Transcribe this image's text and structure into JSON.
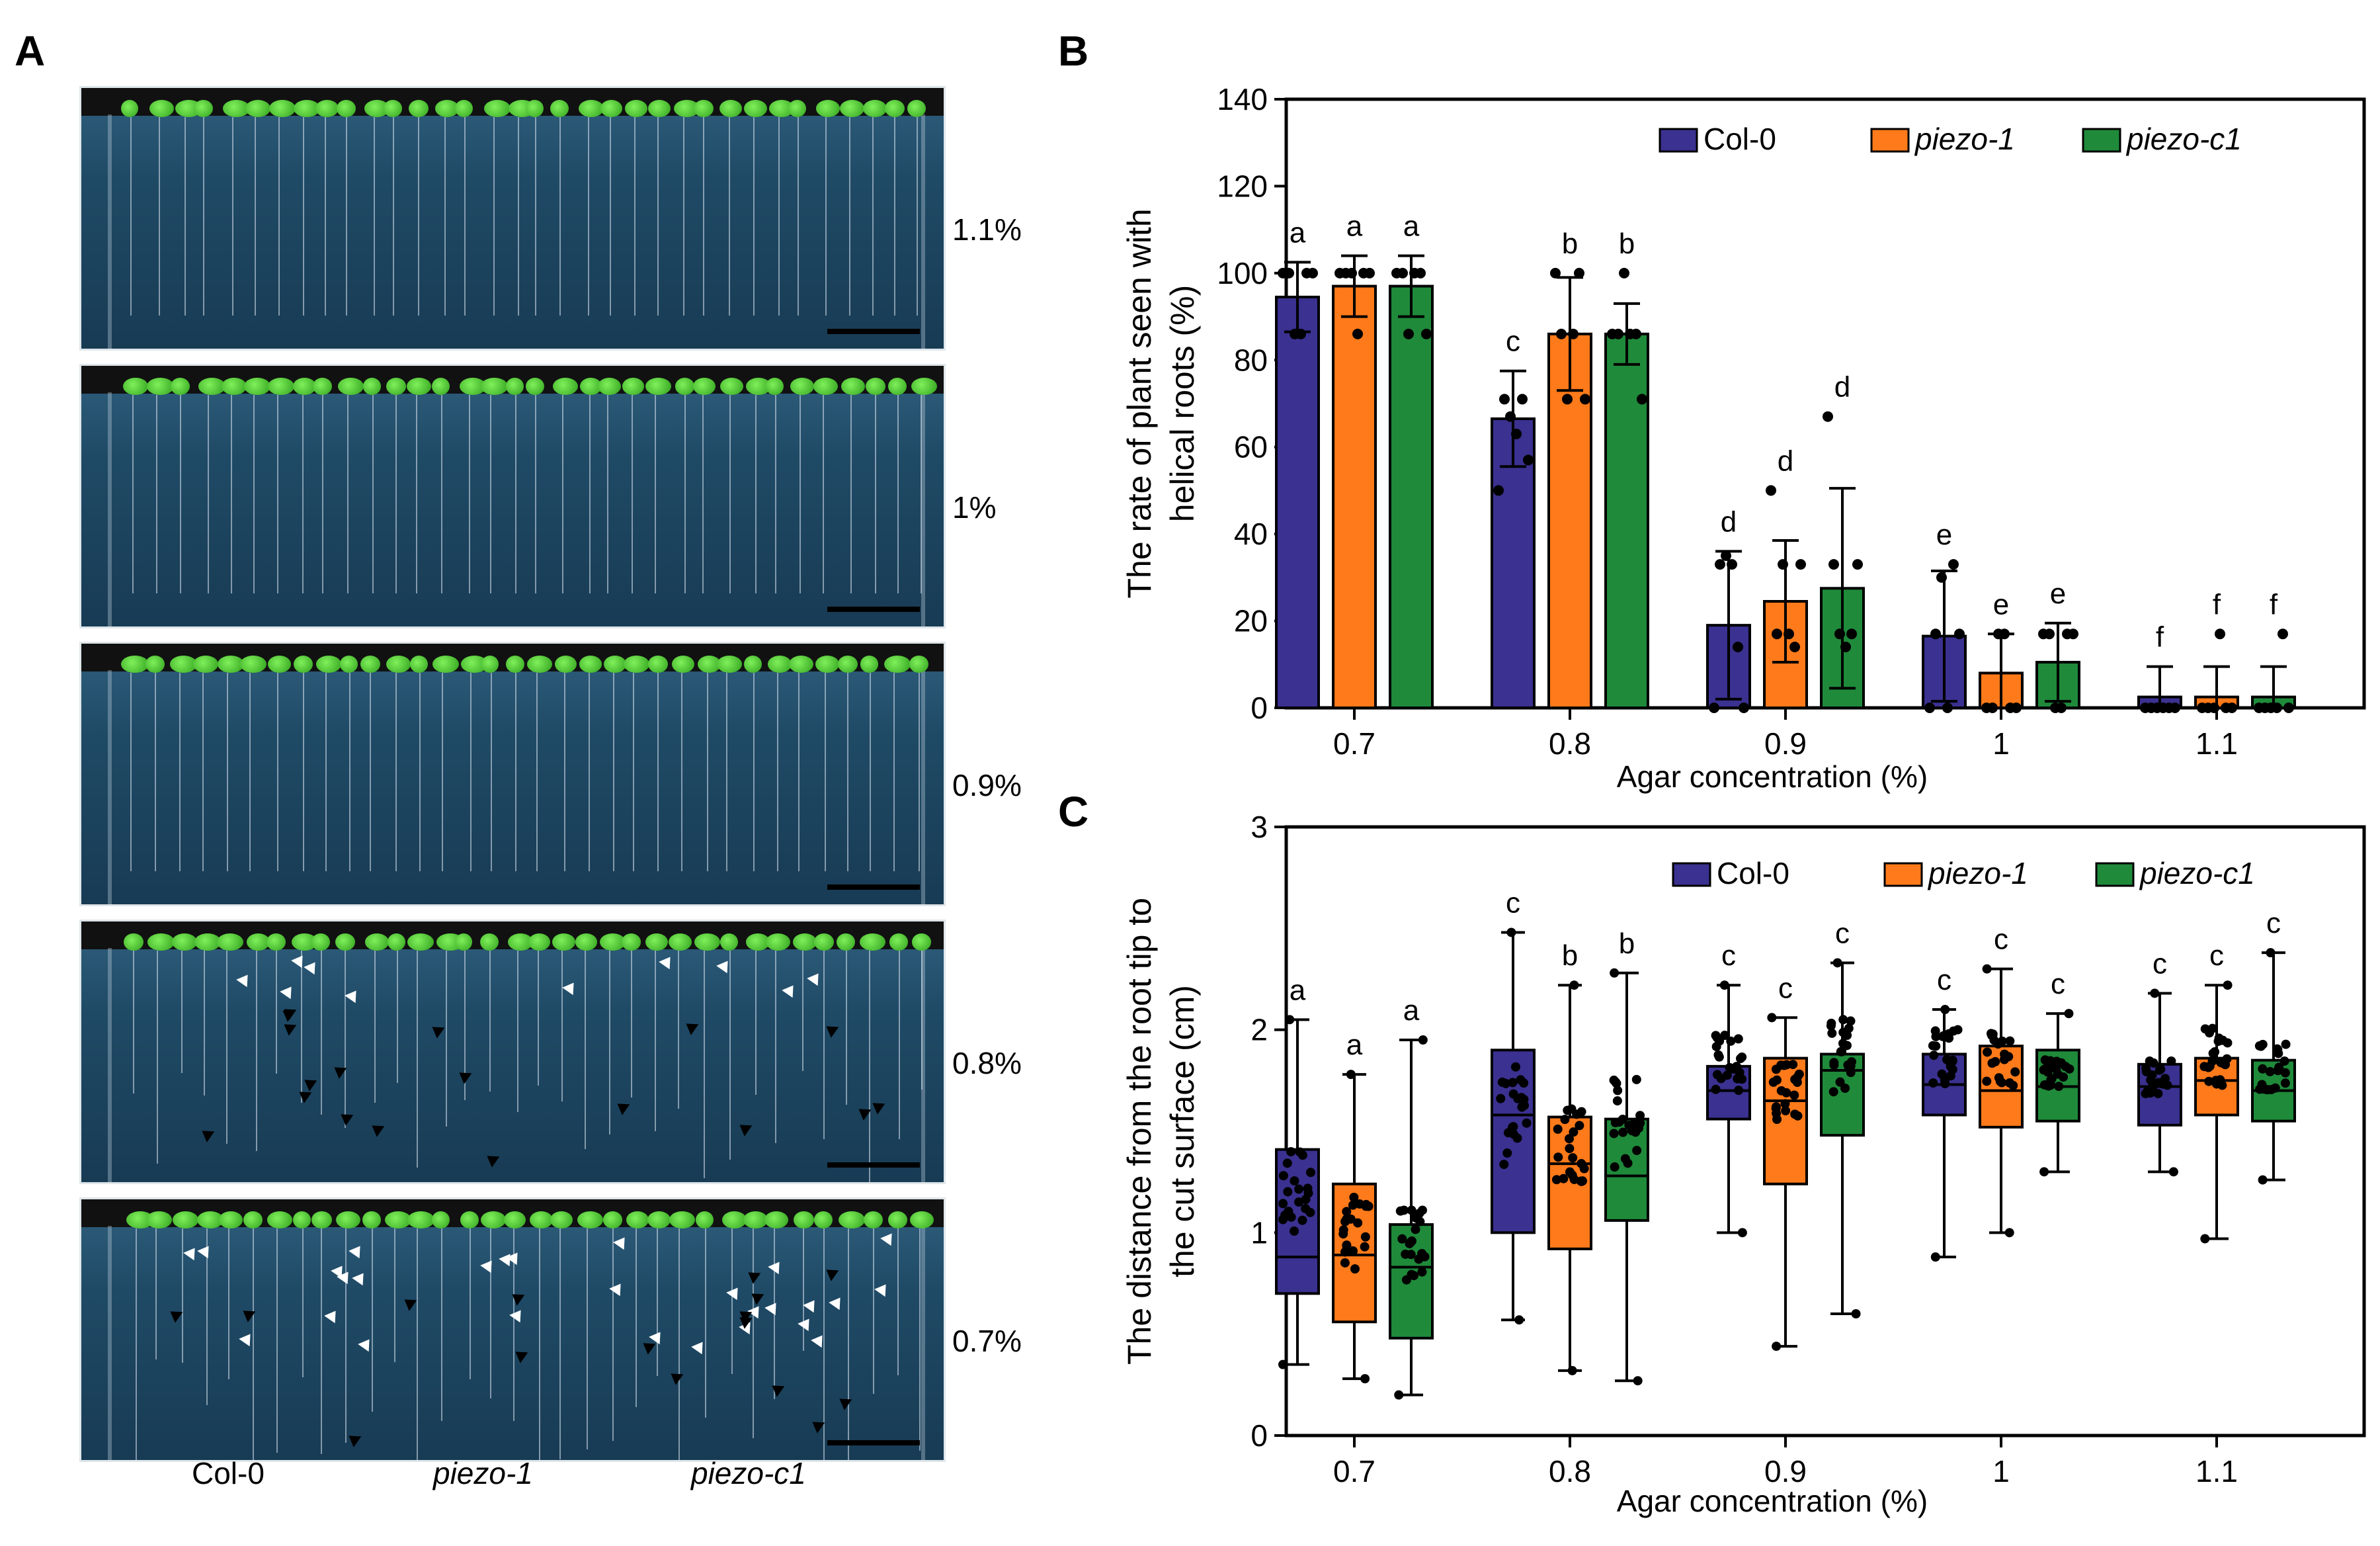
{
  "panels": {
    "a": "A",
    "b": "B",
    "c": "C"
  },
  "photo": {
    "concentration_labels": [
      "1.1%",
      "1%",
      "0.9%",
      "0.8%",
      "0.7%"
    ],
    "genotype_labels": [
      {
        "text": "Col-0",
        "italic": false
      },
      {
        "text": "piezo-1",
        "italic": true
      },
      {
        "text": "piezo-c1",
        "italic": true
      }
    ]
  },
  "colors": {
    "col0": "#3a3190",
    "piezo1": "#ff7a1a",
    "piezoc1": "#1f8a3a"
  },
  "chart_data": [
    {
      "id": "B",
      "type": "bar",
      "ylabel_line1": "The rate of plant seen with",
      "ylabel_line2": "helical roots (%)",
      "xlabel": "Agar concentration (%)",
      "categories": [
        "0.7",
        "0.8",
        "0.9",
        "1",
        "1.1"
      ],
      "ylim": [
        0,
        140
      ],
      "yticks": [
        0,
        20,
        40,
        60,
        80,
        100,
        120,
        140
      ],
      "legend_position": "top",
      "series": [
        {
          "name": "Col-0",
          "italic": false,
          "color": "#3a3190",
          "values": [
            94.5,
            66.5,
            19,
            16.5,
            2.5
          ],
          "sd": [
            8,
            11,
            17,
            15,
            7
          ],
          "letters": [
            "a",
            "c",
            "d",
            "e",
            "f"
          ],
          "points": [
            [
              100,
              100,
              86,
              86,
              100,
              100
            ],
            [
              50,
              71,
              67,
              63,
              71,
              57
            ],
            [
              0,
              33,
              35,
              33,
              14,
              0
            ],
            [
              0,
              17,
              30,
              0,
              33,
              17
            ],
            [
              0,
              0,
              0,
              0,
              0,
              0
            ]
          ]
        },
        {
          "name": "piezo-1",
          "italic": true,
          "color": "#ff7a1a",
          "values": [
            97,
            86,
            24.5,
            8,
            2.5
          ],
          "sd": [
            7,
            13,
            14,
            9,
            7
          ],
          "letters": [
            "a",
            "b",
            "d",
            "e",
            "f"
          ],
          "points": [
            [
              100,
              100,
              100,
              86,
              100,
              100
            ],
            [
              100,
              86,
              71,
              86,
              100,
              71
            ],
            [
              50,
              17,
              33,
              17,
              14,
              33
            ],
            [
              0,
              0,
              17,
              17,
              0,
              0
            ],
            [
              0,
              0,
              0,
              17,
              0,
              0
            ]
          ]
        },
        {
          "name": "piezo-c1",
          "italic": true,
          "color": "#1f8a3a",
          "values": [
            97,
            86,
            27.5,
            10.5,
            2.5
          ],
          "sd": [
            7,
            7,
            23,
            9,
            7
          ],
          "letters": [
            "a",
            "b",
            "d",
            "e",
            "f"
          ],
          "points": [
            [
              100,
              100,
              86,
              100,
              100,
              86
            ],
            [
              86,
              86,
              100,
              86,
              86,
              71
            ],
            [
              67,
              33,
              17,
              14,
              17,
              33
            ],
            [
              17,
              17,
              0,
              0,
              17,
              17
            ],
            [
              0,
              0,
              0,
              0,
              17,
              0
            ]
          ]
        }
      ]
    },
    {
      "id": "C",
      "type": "box",
      "ylabel_line1": "The  distance from the root tip to",
      "ylabel_line2": "the cut surface (cm)",
      "xlabel": "Agar concentration (%)",
      "categories": [
        "0.7",
        "0.8",
        "0.9",
        "1",
        "1.1"
      ],
      "ylim": [
        0,
        3
      ],
      "yticks": [
        0,
        1,
        2,
        3
      ],
      "legend_position": "top",
      "series": [
        {
          "name": "Col-0",
          "italic": false,
          "color": "#3a3190",
          "boxes": [
            {
              "min": 0.35,
              "q1": 0.7,
              "median": 0.88,
              "q3": 1.41,
              "max": 2.05
            },
            {
              "min": 0.57,
              "q1": 1.0,
              "median": 1.58,
              "q3": 1.9,
              "max": 2.48
            },
            {
              "min": 1.0,
              "q1": 1.56,
              "median": 1.7,
              "q3": 1.82,
              "max": 2.22
            },
            {
              "min": 0.88,
              "q1": 1.58,
              "median": 1.73,
              "q3": 1.88,
              "max": 2.1
            },
            {
              "min": 1.3,
              "q1": 1.53,
              "median": 1.72,
              "q3": 1.83,
              "max": 2.18
            }
          ],
          "letters": [
            "a",
            "c",
            "c",
            "c",
            "c"
          ]
        },
        {
          "name": "piezo-1",
          "italic": true,
          "color": "#ff7a1a",
          "boxes": [
            {
              "min": 0.28,
              "q1": 0.56,
              "median": 0.89,
              "q3": 1.24,
              "max": 1.78
            },
            {
              "min": 0.32,
              "q1": 0.92,
              "median": 1.34,
              "q3": 1.57,
              "max": 2.22
            },
            {
              "min": 0.44,
              "q1": 1.24,
              "median": 1.65,
              "q3": 1.86,
              "max": 2.06
            },
            {
              "min": 1.0,
              "q1": 1.52,
              "median": 1.7,
              "q3": 1.92,
              "max": 2.3
            },
            {
              "min": 0.97,
              "q1": 1.58,
              "median": 1.75,
              "q3": 1.86,
              "max": 2.22
            }
          ],
          "letters": [
            "a",
            "b",
            "c",
            "c",
            "c"
          ]
        },
        {
          "name": "piezo-c1",
          "italic": true,
          "color": "#1f8a3a",
          "boxes": [
            {
              "min": 0.2,
              "q1": 0.48,
              "median": 0.83,
              "q3": 1.04,
              "max": 1.95
            },
            {
              "min": 0.27,
              "q1": 1.06,
              "median": 1.28,
              "q3": 1.56,
              "max": 2.28
            },
            {
              "min": 0.6,
              "q1": 1.48,
              "median": 1.8,
              "q3": 1.88,
              "max": 2.33
            },
            {
              "min": 1.3,
              "q1": 1.55,
              "median": 1.72,
              "q3": 1.9,
              "max": 2.08
            },
            {
              "min": 1.26,
              "q1": 1.55,
              "median": 1.7,
              "q3": 1.85,
              "max": 2.38
            }
          ],
          "letters": [
            "a",
            "b",
            "c",
            "c",
            "c"
          ]
        }
      ]
    }
  ]
}
